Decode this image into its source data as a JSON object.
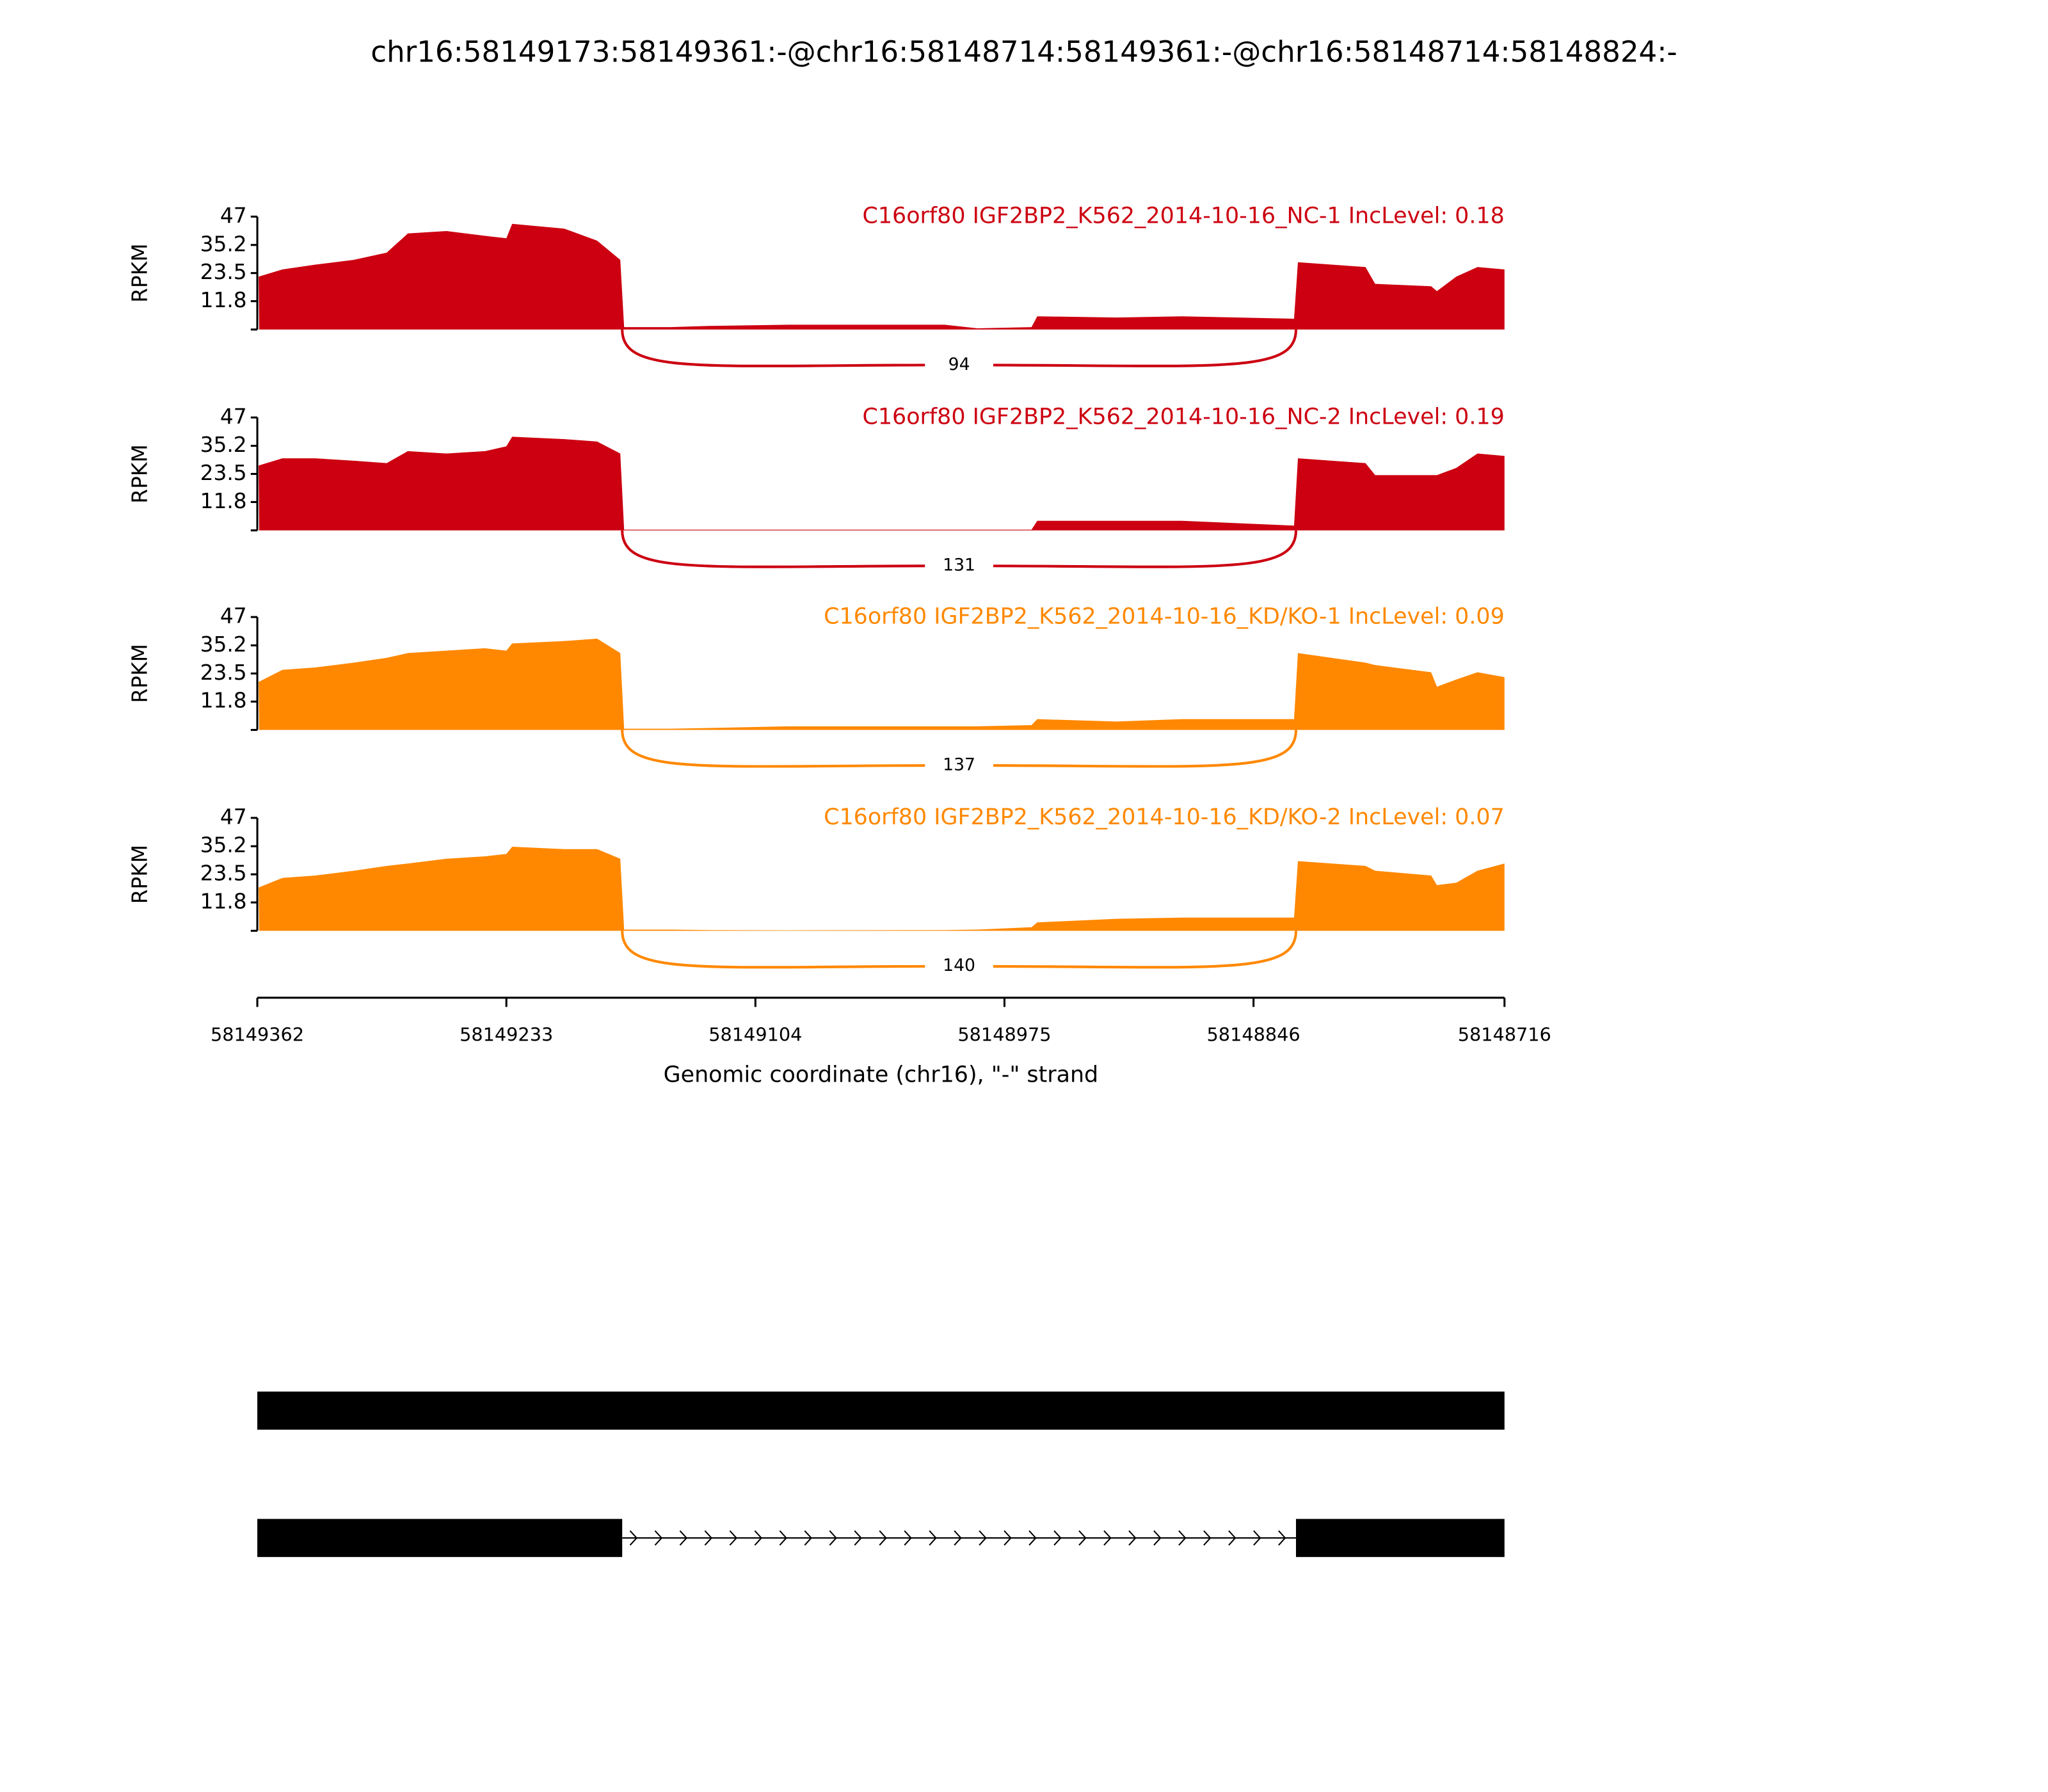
{
  "chart_data": {
    "type": "area",
    "title": "chr16:58149173:58149361:-@chr16:58148714:58149361:-@chr16:58148714:58148824:-",
    "xlabel": "Genomic coordinate (chr16), \"-\" strand",
    "ylabel": "RPKM",
    "xlim": [
      58149362,
      58148716
    ],
    "ylim": [
      0,
      47
    ],
    "yticks": [
      "11.8",
      "23.5",
      "35.2",
      "47"
    ],
    "xticks": [
      "58149362",
      "58149233",
      "58149104",
      "58148975",
      "58148846",
      "58148716"
    ],
    "x": [
      58149361,
      58149349,
      58149332,
      58149312,
      58149295,
      58149284,
      58149264,
      58149244,
      58149233,
      58149230,
      58149203,
      58149186,
      58149174,
      58149172,
      58149148,
      58149128,
      58149087,
      58149006,
      58148989,
      58148961,
      58148958,
      58148917,
      58148883,
      58148825,
      58148823,
      58148788,
      58148783,
      58148754,
      58148751,
      58148741,
      58148730,
      58148716
    ],
    "series": [
      {
        "name": "C16orf80 IGF2BP2_K562_2014-10-16_NC-1 IncLevel: 0.18",
        "color": "#cc0011",
        "junction_count": "94",
        "values": [
          22,
          25,
          27,
          29,
          32,
          40,
          41,
          39,
          38,
          44,
          42,
          37,
          29,
          1,
          1,
          1.5,
          2,
          2,
          0.5,
          1,
          5.5,
          5,
          5.5,
          4.5,
          28,
          26,
          19,
          18,
          16,
          22,
          26,
          25
        ]
      },
      {
        "name": "C16orf80 IGF2BP2_K562_2014-10-16_NC-2 IncLevel: 0.19",
        "color": "#cc0011",
        "junction_count": "131",
        "values": [
          27,
          30,
          30,
          29,
          28,
          33,
          32,
          33,
          35,
          39,
          38,
          37,
          32,
          0.3,
          0.3,
          0.3,
          0.3,
          0.3,
          0.3,
          0.3,
          4,
          4,
          4,
          2,
          30,
          28,
          23,
          23,
          23,
          26,
          32,
          31
        ]
      },
      {
        "name": "C16orf80 IGF2BP2_K562_2014-10-16_KD/KO-1 IncLevel: 0.09",
        "color": "#ff8800",
        "junction_count": "137",
        "values": [
          20,
          25,
          26,
          28,
          30,
          32,
          33,
          34,
          33,
          36,
          37,
          38,
          32,
          0.5,
          0.5,
          0.8,
          1.5,
          1.5,
          1.5,
          2,
          4.5,
          3.5,
          4.5,
          4.5,
          32,
          28,
          27,
          24,
          18,
          21,
          24,
          22
        ]
      },
      {
        "name": "C16orf80 IGF2BP2_K562_2014-10-16_KD/KO-2 IncLevel: 0.07",
        "color": "#ff8800",
        "junction_count": "140",
        "values": [
          18,
          22,
          23,
          25,
          27,
          28,
          30,
          31,
          32,
          35,
          34,
          34,
          30,
          0.5,
          0.5,
          0.3,
          0.2,
          0.3,
          0.5,
          1.5,
          3.5,
          5,
          5.5,
          5.5,
          29,
          27,
          25,
          23,
          19,
          20,
          25,
          28
        ]
      }
    ],
    "junction": [
      58149173,
      58148824
    ],
    "transcripts": [
      {
        "exons": [
          [
            58149362,
            58148716
          ]
        ]
      },
      {
        "exons": [
          [
            58149362,
            58149173
          ],
          [
            58148824,
            58148716
          ]
        ]
      }
    ]
  }
}
